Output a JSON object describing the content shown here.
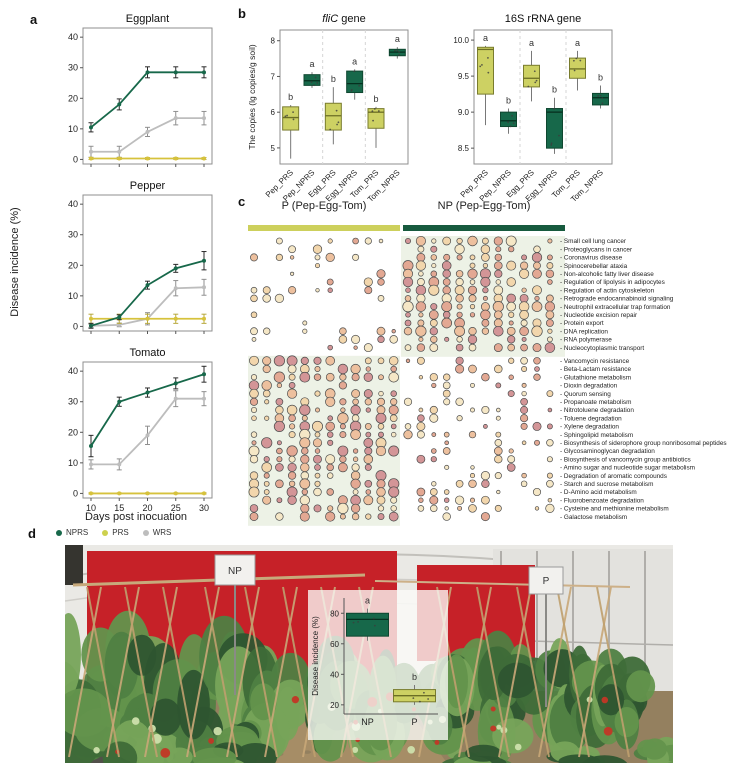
{
  "labels": {
    "a": "a",
    "b": "b",
    "c": "c",
    "d": "d"
  },
  "colors": {
    "nprs": "#17684a",
    "nprs_border": "#0f4730",
    "prs_box": "#cdd163",
    "prs_border": "#797c2e",
    "prs_line": "#d6c23c",
    "wrs": "#bdbdbd",
    "frame": "#8f8f8f",
    "p_bar": "#cdd05c",
    "np_bar": "#175a3e",
    "dot_stroke": "#4d4d4d",
    "shade": "#edf2e6",
    "red_wall": "#c62128"
  },
  "chart_data": {
    "panel_a": {
      "type": "line",
      "ylabel": "Disease incidence (%)",
      "xlabel": "Days post inocuation",
      "x": [
        10,
        15,
        20,
        25,
        30
      ],
      "ylim": [
        0,
        40
      ],
      "yticks": [
        0,
        10,
        20,
        30,
        40
      ],
      "legend": [
        {
          "label": "NPRS",
          "color": "#17684a"
        },
        {
          "label": "PRS",
          "color": "#cdd14e"
        },
        {
          "label": "WRS",
          "color": "#bdbdbd"
        }
      ],
      "charts": [
        {
          "title": "Eggplant",
          "series": [
            {
              "name": "WRS",
              "values": [
                2.5,
                2.5,
                9,
                13.5,
                13.5
              ],
              "err": [
                1.8,
                1.8,
                1.5,
                2.2,
                2.2
              ]
            },
            {
              "name": "PRS",
              "values": [
                0.3,
                0.3,
                0.3,
                0.3,
                0.3
              ],
              "err": [
                0.3,
                0.3,
                0.3,
                0.3,
                0.3
              ]
            },
            {
              "name": "NPRS",
              "values": [
                10.5,
                18,
                28.5,
                28.5,
                28.5
              ],
              "err": [
                1.5,
                1.8,
                1.8,
                1.8,
                1.8
              ]
            }
          ]
        },
        {
          "title": "Pepper",
          "series": [
            {
              "name": "WRS",
              "values": [
                0.2,
                0.5,
                2.5,
                12.5,
                12.8
              ],
              "err": [
                0.5,
                0.6,
                2,
                2.5,
                2.6
              ]
            },
            {
              "name": "PRS",
              "values": [
                2.5,
                2.5,
                2.5,
                2.5,
                2.5
              ],
              "err": [
                1.5,
                1.5,
                1.5,
                1.5,
                1.5
              ]
            },
            {
              "name": "NPRS",
              "values": [
                0.2,
                3,
                13.5,
                19,
                21.5
              ],
              "err": [
                0.8,
                0.8,
                1.3,
                1.3,
                3
              ]
            }
          ]
        },
        {
          "title": "Tomato",
          "series": [
            {
              "name": "WRS",
              "values": [
                9.5,
                9.5,
                19,
                31,
                31
              ],
              "err": [
                1.5,
                1.8,
                3,
                2.6,
                2.3
              ]
            },
            {
              "name": "PRS",
              "values": [
                0,
                0,
                0,
                0,
                0
              ],
              "err": [
                0.2,
                0.2,
                0.2,
                0.2,
                0.2
              ]
            },
            {
              "name": "NPRS",
              "values": [
                15.5,
                30,
                33,
                36,
                39
              ],
              "err": [
                3.5,
                1.5,
                1.5,
                1.8,
                2.6
              ]
            }
          ]
        }
      ]
    },
    "panel_b": {
      "type": "box",
      "ylabel": "The copies (lg copies/g soil)",
      "categories": [
        "Pep_PRS",
        "Pep_NPRS",
        "Egg_PRS",
        "Egg_NPRS",
        "Tom_PRS",
        "Tom_NPRS"
      ],
      "plots": [
        {
          "title_parts": [
            {
              "t": "fliC",
              "i": true
            },
            {
              "t": " gene",
              "i": false
            }
          ],
          "yticks": [
            5,
            6,
            7,
            8
          ],
          "ytick_labels": [
            "5",
            "6",
            "7",
            "8"
          ],
          "ylim": [
            4.55,
            8.3
          ],
          "boxes": [
            {
              "cat": "Pep_PRS",
              "group": "PRS",
              "lo": 4.7,
              "q1": 5.5,
              "med": 5.85,
              "q3": 6.15,
              "hi": 6.2,
              "letter": "b"
            },
            {
              "cat": "Pep_NPRS",
              "group": "NPRS",
              "lo": 6.68,
              "q1": 6.75,
              "med": 6.88,
              "q3": 7.05,
              "hi": 7.12,
              "letter": "a"
            },
            {
              "cat": "Egg_PRS",
              "group": "PRS",
              "lo": 5.1,
              "q1": 5.5,
              "med": 5.9,
              "q3": 6.25,
              "hi": 6.7,
              "letter": "b"
            },
            {
              "cat": "Egg_NPRS",
              "group": "NPRS",
              "lo": 6.35,
              "q1": 6.55,
              "med": 6.8,
              "q3": 7.15,
              "hi": 7.2,
              "letter": "a"
            },
            {
              "cat": "Tom_PRS",
              "group": "PRS",
              "lo": 5.0,
              "q1": 5.55,
              "med": 6.0,
              "q3": 6.1,
              "hi": 6.15,
              "letter": "b"
            },
            {
              "cat": "Tom_NPRS",
              "group": "NPRS",
              "lo": 7.5,
              "q1": 7.58,
              "med": 7.68,
              "q3": 7.76,
              "hi": 7.82,
              "letter": "a"
            }
          ]
        },
        {
          "title_parts": [
            {
              "t": "16S rRNA gene",
              "i": false
            }
          ],
          "yticks": [
            8.5,
            9.0,
            9.5,
            10.0
          ],
          "ytick_labels": [
            "8.5",
            "9.0",
            "9.5",
            "10.0"
          ],
          "ylim": [
            8.28,
            10.14
          ],
          "boxes": [
            {
              "cat": "Pep_PRS",
              "group": "PRS",
              "lo": 8.82,
              "q1": 9.25,
              "med": 9.87,
              "q3": 9.9,
              "hi": 9.92,
              "letter": "a"
            },
            {
              "cat": "Pep_NPRS",
              "group": "NPRS",
              "lo": 8.7,
              "q1": 8.8,
              "med": 8.88,
              "q3": 9.0,
              "hi": 9.05,
              "letter": "b"
            },
            {
              "cat": "Egg_PRS",
              "group": "PRS",
              "lo": 9.15,
              "q1": 9.35,
              "med": 9.47,
              "q3": 9.65,
              "hi": 9.85,
              "letter": "a"
            },
            {
              "cat": "Egg_NPRS",
              "group": "NPRS",
              "lo": 8.42,
              "q1": 8.5,
              "med": 9.0,
              "q3": 9.05,
              "hi": 9.2,
              "letter": "b"
            },
            {
              "cat": "Tom_PRS",
              "group": "PRS",
              "lo": 9.3,
              "q1": 9.47,
              "med": 9.6,
              "q3": 9.75,
              "hi": 9.85,
              "letter": "a"
            },
            {
              "cat": "Tom_NPRS",
              "group": "NPRS",
              "lo": 9.05,
              "q1": 9.1,
              "med": 9.2,
              "q3": 9.26,
              "hi": 9.37,
              "letter": "b"
            }
          ]
        }
      ]
    },
    "panel_c": {
      "type": "bubble-matrix",
      "seed": 42,
      "cols_per_group": 12,
      "groups": [
        {
          "label": "P (Pep-Egg-Tom)",
          "bar_color": "#cdd05c"
        },
        {
          "label": "NP (Pep-Egg-Tom)",
          "bar_color": "#175a3e"
        }
      ],
      "palette": [
        "#f5e7c6",
        "#f2d6ac",
        "#edc09e",
        "#e3a893",
        "#d39597"
      ],
      "blocks": [
        {
          "p_density": 0.34,
          "np_density": 0.8,
          "shaded_side": "np",
          "rows": [
            "Small cell lung cancer",
            "Proteoglycans in cancer",
            "Coronavirus disease",
            "Spinocerebellar ataxia",
            "Non-alcoholic fatty liver disease",
            "Regulation of lipolysis in adipocytes",
            "Regulation of actin cytoskeleton",
            "Retrograde endocannabinoid signaling",
            "Neutrophil extracellular trap formation",
            "Nucleotide excision repair",
            "Protein export",
            "DNA replication",
            "RNA polymerase",
            "Nucleocytoplasmic transport"
          ]
        },
        {
          "p_density": 0.74,
          "np_density": 0.42,
          "shaded_side": "p",
          "rows": [
            "Vancomycin resistance",
            "Beta-Lactam resistance",
            "Glutathione metabolism",
            "Dioxin degradation",
            "Quorum sensing",
            "Propanoate metabolism",
            "Nitrotoluene degradation",
            "Toluene degradation",
            "Xylene degradation",
            "Sphingolipid metabolism",
            "Biosynthesis of siderophore group nonribosomal peptides",
            "Glycosaminoglycan degradation",
            "Biosynthesis of vancomycin group antibiotics",
            "Amino sugar and nucleotide sugar metabolism",
            "Degradation of aromatic compounds",
            "Starch and sucrose metabolism",
            "D-Amino acid metabolism",
            "Fluorobenzoate degradation",
            "Cysteine and methionine metabolism",
            "Galactose metabolism"
          ]
        }
      ]
    },
    "panel_d_inset": {
      "type": "box",
      "ylabel": "Disease incidence (%)",
      "yticks": [
        20,
        40,
        60,
        80
      ],
      "ytick_labels": [
        "20",
        "40",
        "60",
        "80"
      ],
      "ylim": [
        14,
        90
      ],
      "boxes": [
        {
          "cat": "NP",
          "group": "NPRS",
          "lo": 62,
          "q1": 65,
          "med": 76,
          "q3": 80,
          "hi": 83,
          "letter": "a"
        },
        {
          "cat": "P",
          "group": "PRS",
          "lo": 20,
          "q1": 22,
          "med": 26,
          "q3": 30,
          "hi": 33,
          "letter": "b"
        }
      ]
    }
  },
  "photo": {
    "sign_np": "NP",
    "sign_p": "P"
  }
}
